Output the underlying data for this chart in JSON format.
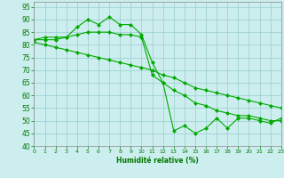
{
  "xlabel": "Humidité relative (%)",
  "xlim": [
    0,
    23
  ],
  "ylim": [
    40,
    97
  ],
  "yticks": [
    40,
    45,
    50,
    55,
    60,
    65,
    70,
    75,
    80,
    85,
    90,
    95
  ],
  "xticks": [
    0,
    1,
    2,
    3,
    4,
    5,
    6,
    7,
    8,
    9,
    10,
    11,
    12,
    13,
    14,
    15,
    16,
    17,
    18,
    19,
    20,
    21,
    22,
    23
  ],
  "bg_color": "#cceeee",
  "grid_color": "#99cccc",
  "line_color": "#00aa00",
  "line1_x": [
    0,
    1,
    2,
    3,
    4,
    5,
    6,
    7,
    8,
    9,
    10,
    11,
    12,
    13,
    14,
    15,
    16,
    17,
    18,
    19,
    20,
    21,
    22,
    23
  ],
  "line1_y": [
    82,
    83,
    83,
    83,
    87,
    90,
    88,
    91,
    88,
    88,
    84,
    73,
    65,
    46,
    48,
    45,
    47,
    51,
    47,
    51,
    51,
    50,
    49,
    51
  ],
  "line2_x": [
    0,
    1,
    2,
    3,
    4,
    5,
    6,
    7,
    8,
    9,
    10,
    11,
    12,
    13,
    14,
    15,
    16,
    17,
    18,
    19,
    20,
    21,
    22,
    23
  ],
  "line2_y": [
    82,
    82,
    82,
    83,
    84,
    85,
    85,
    85,
    84,
    84,
    83,
    68,
    65,
    62,
    60,
    57,
    56,
    54,
    53,
    52,
    52,
    51,
    50,
    50
  ],
  "line3_x": [
    0,
    1,
    2,
    3,
    4,
    5,
    6,
    7,
    8,
    9,
    10,
    11,
    12,
    13,
    14,
    15,
    16,
    17,
    18,
    19,
    20,
    21,
    22,
    23
  ],
  "line3_y": [
    81,
    80,
    79,
    78,
    77,
    76,
    75,
    74,
    73,
    72,
    71,
    70,
    68,
    67,
    65,
    63,
    62,
    61,
    60,
    59,
    58,
    57,
    56,
    55
  ]
}
